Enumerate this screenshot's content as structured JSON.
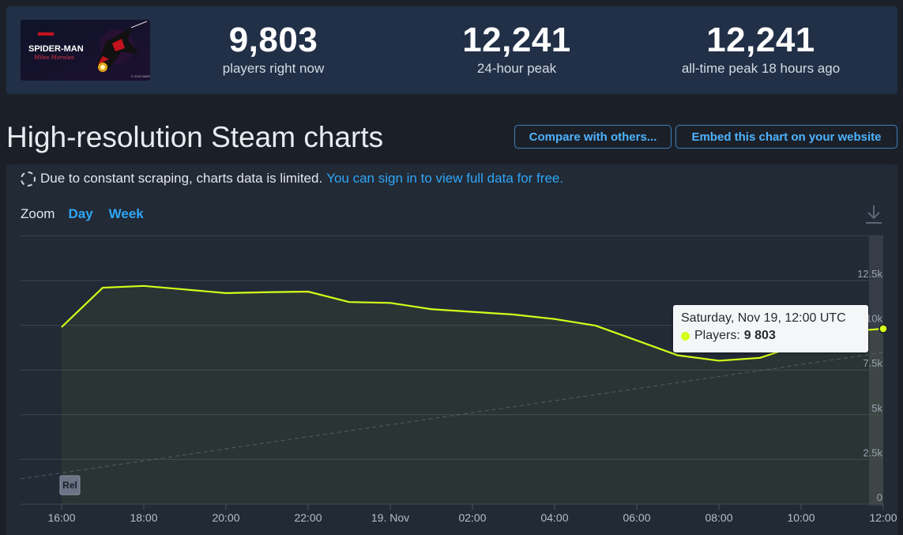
{
  "stats": {
    "current": {
      "value": "9,803",
      "label": "players right now"
    },
    "peak_24h": {
      "value": "12,241",
      "label": "24-hour peak"
    },
    "all_time": {
      "value": "12,241",
      "label": "all-time peak 18 hours ago"
    }
  },
  "game_thumb": {
    "title": "SPIDER-MAN",
    "subtitle": "Miles Morales",
    "copyright": "© 2022 MARVEL"
  },
  "title": "High-resolution Steam charts",
  "buttons": {
    "compare": "Compare with others...",
    "embed": "Embed this chart on your website"
  },
  "notice": {
    "text": "Due to constant scraping, charts data is limited.",
    "link": "You can sign in to view full data for free."
  },
  "zoom": {
    "label": "Zoom",
    "options": [
      "Day",
      "Week"
    ]
  },
  "tooltip": {
    "title": "Saturday, Nov 19, 12:00 UTC",
    "series_label": "Players:",
    "value": "9 803"
  },
  "rel_label": "Rel",
  "colors": {
    "line": "#d4ff1a",
    "accent": "#2fa6f5",
    "background": "#1b2028"
  },
  "chart_data": {
    "type": "line",
    "x_ticks": [
      "16:00",
      "18:00",
      "20:00",
      "22:00",
      "19. Nov",
      "02:00",
      "04:00",
      "06:00",
      "08:00",
      "10:00",
      "12:00"
    ],
    "y_ticks": [
      "0",
      "2.5k",
      "5k",
      "7.5k",
      "10k",
      "12.5k"
    ],
    "ylim": [
      0,
      15000
    ],
    "series": [
      {
        "name": "Players",
        "x": [
          "16:00",
          "17:00",
          "18:00",
          "19:00",
          "20:00",
          "21:00",
          "22:00",
          "23:00",
          "19. Nov",
          "01:00",
          "02:00",
          "03:00",
          "04:00",
          "05:00",
          "06:00",
          "07:00",
          "08:00",
          "09:00",
          "10:00",
          "11:00",
          "12:00"
        ],
        "values": [
          9900,
          12100,
          12200,
          12000,
          11800,
          11850,
          11880,
          11300,
          11250,
          10900,
          10750,
          10600,
          10350,
          9980,
          9150,
          8320,
          8020,
          8180,
          8930,
          9640,
          9803
        ]
      }
    ],
    "grid": true
  }
}
